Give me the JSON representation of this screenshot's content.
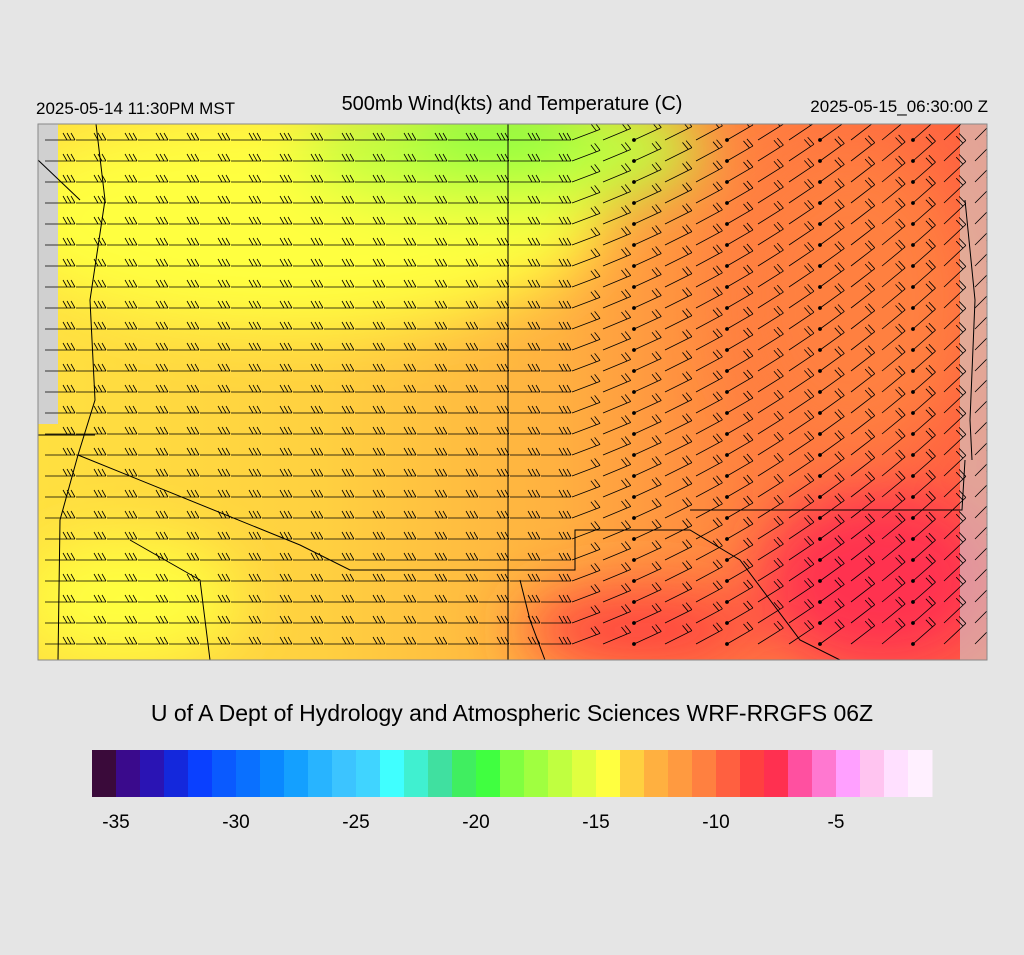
{
  "header": {
    "left": "2025-05-14 11:30PM MST",
    "title": "500mb Wind(kts) and Temperature (C)",
    "right": "2025-05-15_06:30:00 Z"
  },
  "credit": "U of A Dept of Hydrology and Atmospheric Sciences WRF-RRGFS 06Z",
  "colorbar": {
    "lim": [
      -36,
      -1
    ],
    "ticks": [
      -35,
      -30,
      -25,
      -20,
      -15,
      -10,
      -5
    ],
    "colors": [
      "#3a0a3a",
      "#3a0a8c",
      "#2a14b4",
      "#1428dc",
      "#0a40ff",
      "#0a5aff",
      "#0a70ff",
      "#0a88ff",
      "#14a0ff",
      "#28b4ff",
      "#3cc4ff",
      "#40d4ff",
      "#40ffff",
      "#40f0d0",
      "#40e0a0",
      "#40ee60",
      "#40ff40",
      "#80ff40",
      "#a0ff40",
      "#c0ff40",
      "#e0ff40",
      "#ffff40",
      "#ffd040",
      "#ffb040",
      "#ff9a40",
      "#ff8040",
      "#ff6040",
      "#ff4040",
      "#ff3050",
      "#ff50a0",
      "#ff78d0",
      "#ffa0ff",
      "#ffc4f0",
      "#ffe0ff",
      "#fff0ff"
    ]
  }
}
